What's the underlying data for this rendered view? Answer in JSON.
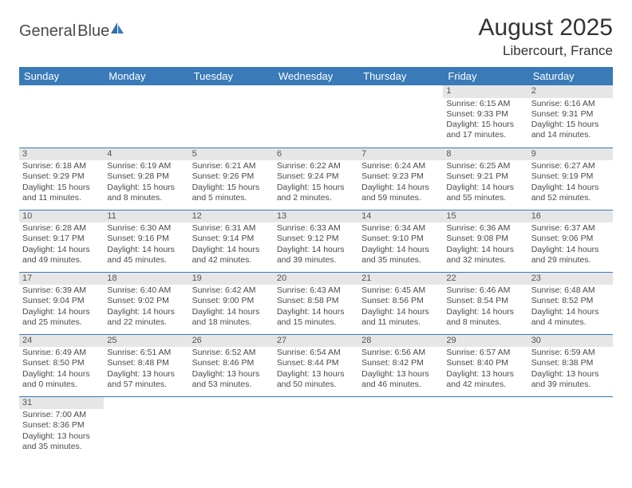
{
  "logo": {
    "text1": "General",
    "text2": "Blue"
  },
  "title": "August 2025",
  "location": "Libercourt, France",
  "colors": {
    "header_blue": "#3a7ab8",
    "daynum_bg": "#e6e6e6",
    "text": "#4a4a4a"
  },
  "weekdays": [
    "Sunday",
    "Monday",
    "Tuesday",
    "Wednesday",
    "Thursday",
    "Friday",
    "Saturday"
  ],
  "weeks": [
    [
      null,
      null,
      null,
      null,
      null,
      {
        "n": "1",
        "sunrise": "Sunrise: 6:15 AM",
        "sunset": "Sunset: 9:33 PM",
        "daylight": "Daylight: 15 hours and 17 minutes."
      },
      {
        "n": "2",
        "sunrise": "Sunrise: 6:16 AM",
        "sunset": "Sunset: 9:31 PM",
        "daylight": "Daylight: 15 hours and 14 minutes."
      }
    ],
    [
      {
        "n": "3",
        "sunrise": "Sunrise: 6:18 AM",
        "sunset": "Sunset: 9:29 PM",
        "daylight": "Daylight: 15 hours and 11 minutes."
      },
      {
        "n": "4",
        "sunrise": "Sunrise: 6:19 AM",
        "sunset": "Sunset: 9:28 PM",
        "daylight": "Daylight: 15 hours and 8 minutes."
      },
      {
        "n": "5",
        "sunrise": "Sunrise: 6:21 AM",
        "sunset": "Sunset: 9:26 PM",
        "daylight": "Daylight: 15 hours and 5 minutes."
      },
      {
        "n": "6",
        "sunrise": "Sunrise: 6:22 AM",
        "sunset": "Sunset: 9:24 PM",
        "daylight": "Daylight: 15 hours and 2 minutes."
      },
      {
        "n": "7",
        "sunrise": "Sunrise: 6:24 AM",
        "sunset": "Sunset: 9:23 PM",
        "daylight": "Daylight: 14 hours and 59 minutes."
      },
      {
        "n": "8",
        "sunrise": "Sunrise: 6:25 AM",
        "sunset": "Sunset: 9:21 PM",
        "daylight": "Daylight: 14 hours and 55 minutes."
      },
      {
        "n": "9",
        "sunrise": "Sunrise: 6:27 AM",
        "sunset": "Sunset: 9:19 PM",
        "daylight": "Daylight: 14 hours and 52 minutes."
      }
    ],
    [
      {
        "n": "10",
        "sunrise": "Sunrise: 6:28 AM",
        "sunset": "Sunset: 9:17 PM",
        "daylight": "Daylight: 14 hours and 49 minutes."
      },
      {
        "n": "11",
        "sunrise": "Sunrise: 6:30 AM",
        "sunset": "Sunset: 9:16 PM",
        "daylight": "Daylight: 14 hours and 45 minutes."
      },
      {
        "n": "12",
        "sunrise": "Sunrise: 6:31 AM",
        "sunset": "Sunset: 9:14 PM",
        "daylight": "Daylight: 14 hours and 42 minutes."
      },
      {
        "n": "13",
        "sunrise": "Sunrise: 6:33 AM",
        "sunset": "Sunset: 9:12 PM",
        "daylight": "Daylight: 14 hours and 39 minutes."
      },
      {
        "n": "14",
        "sunrise": "Sunrise: 6:34 AM",
        "sunset": "Sunset: 9:10 PM",
        "daylight": "Daylight: 14 hours and 35 minutes."
      },
      {
        "n": "15",
        "sunrise": "Sunrise: 6:36 AM",
        "sunset": "Sunset: 9:08 PM",
        "daylight": "Daylight: 14 hours and 32 minutes."
      },
      {
        "n": "16",
        "sunrise": "Sunrise: 6:37 AM",
        "sunset": "Sunset: 9:06 PM",
        "daylight": "Daylight: 14 hours and 29 minutes."
      }
    ],
    [
      {
        "n": "17",
        "sunrise": "Sunrise: 6:39 AM",
        "sunset": "Sunset: 9:04 PM",
        "daylight": "Daylight: 14 hours and 25 minutes."
      },
      {
        "n": "18",
        "sunrise": "Sunrise: 6:40 AM",
        "sunset": "Sunset: 9:02 PM",
        "daylight": "Daylight: 14 hours and 22 minutes."
      },
      {
        "n": "19",
        "sunrise": "Sunrise: 6:42 AM",
        "sunset": "Sunset: 9:00 PM",
        "daylight": "Daylight: 14 hours and 18 minutes."
      },
      {
        "n": "20",
        "sunrise": "Sunrise: 6:43 AM",
        "sunset": "Sunset: 8:58 PM",
        "daylight": "Daylight: 14 hours and 15 minutes."
      },
      {
        "n": "21",
        "sunrise": "Sunrise: 6:45 AM",
        "sunset": "Sunset: 8:56 PM",
        "daylight": "Daylight: 14 hours and 11 minutes."
      },
      {
        "n": "22",
        "sunrise": "Sunrise: 6:46 AM",
        "sunset": "Sunset: 8:54 PM",
        "daylight": "Daylight: 14 hours and 8 minutes."
      },
      {
        "n": "23",
        "sunrise": "Sunrise: 6:48 AM",
        "sunset": "Sunset: 8:52 PM",
        "daylight": "Daylight: 14 hours and 4 minutes."
      }
    ],
    [
      {
        "n": "24",
        "sunrise": "Sunrise: 6:49 AM",
        "sunset": "Sunset: 8:50 PM",
        "daylight": "Daylight: 14 hours and 0 minutes."
      },
      {
        "n": "25",
        "sunrise": "Sunrise: 6:51 AM",
        "sunset": "Sunset: 8:48 PM",
        "daylight": "Daylight: 13 hours and 57 minutes."
      },
      {
        "n": "26",
        "sunrise": "Sunrise: 6:52 AM",
        "sunset": "Sunset: 8:46 PM",
        "daylight": "Daylight: 13 hours and 53 minutes."
      },
      {
        "n": "27",
        "sunrise": "Sunrise: 6:54 AM",
        "sunset": "Sunset: 8:44 PM",
        "daylight": "Daylight: 13 hours and 50 minutes."
      },
      {
        "n": "28",
        "sunrise": "Sunrise: 6:56 AM",
        "sunset": "Sunset: 8:42 PM",
        "daylight": "Daylight: 13 hours and 46 minutes."
      },
      {
        "n": "29",
        "sunrise": "Sunrise: 6:57 AM",
        "sunset": "Sunset: 8:40 PM",
        "daylight": "Daylight: 13 hours and 42 minutes."
      },
      {
        "n": "30",
        "sunrise": "Sunrise: 6:59 AM",
        "sunset": "Sunset: 8:38 PM",
        "daylight": "Daylight: 13 hours and 39 minutes."
      }
    ],
    [
      {
        "n": "31",
        "sunrise": "Sunrise: 7:00 AM",
        "sunset": "Sunset: 8:36 PM",
        "daylight": "Daylight: 13 hours and 35 minutes."
      },
      null,
      null,
      null,
      null,
      null,
      null
    ]
  ]
}
